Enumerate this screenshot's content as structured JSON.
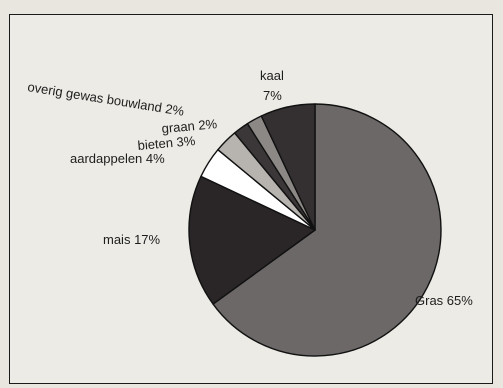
{
  "chart_data": {
    "type": "pie",
    "title": "",
    "slices": [
      {
        "label": "Gras",
        "value": 65,
        "value_label": "65%",
        "color": "#6b6867"
      },
      {
        "label": "mais",
        "value": 17,
        "value_label": "17%",
        "color": "#2a2628"
      },
      {
        "label": "aardappelen",
        "value": 4,
        "value_label": "4%",
        "color": "#ffffff"
      },
      {
        "label": "bieten",
        "value": 3,
        "value_label": "3%",
        "color": "#b7b4b0"
      },
      {
        "label": "graan",
        "value": 2,
        "value_label": "2%",
        "color": "#3b3738"
      },
      {
        "label": "overig gewas bouwland",
        "value": 2,
        "value_label": "2%",
        "color": "#8c8886"
      },
      {
        "label": "kaal",
        "value": 7,
        "value_label": "7%",
        "color": "#343031"
      }
    ]
  }
}
